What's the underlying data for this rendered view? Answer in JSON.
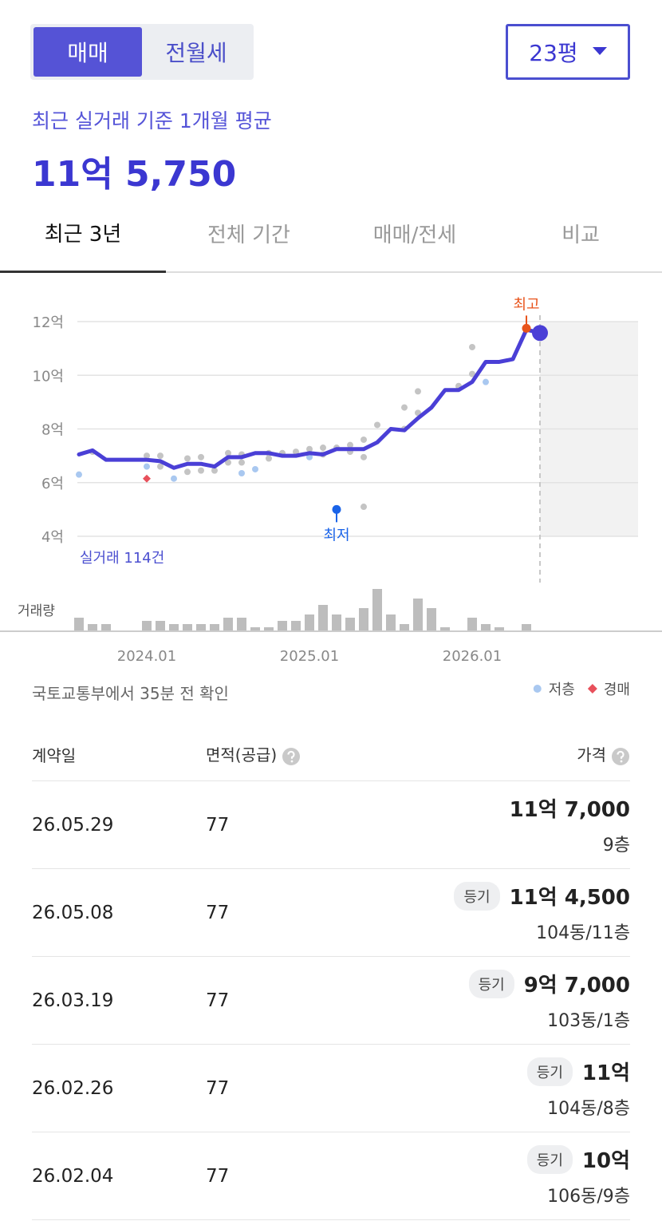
{
  "deal_tabs": {
    "items": [
      "매매",
      "전월세"
    ],
    "active": 0
  },
  "size_select": "23평",
  "avg_label": "최근 실거래 기준 1개월 평균",
  "avg_price": "11억 5,750",
  "period_tabs": {
    "items": [
      "최근 3년",
      "전체 기간",
      "매매/전세",
      "비교"
    ],
    "active": 0
  },
  "chart_data": {
    "type": "line",
    "ylim": [
      2.9,
      13
    ],
    "yticks": [
      {
        "value": 12,
        "label": "12억"
      },
      {
        "value": 10,
        "label": "10억"
      },
      {
        "value": 8,
        "label": "8억"
      },
      {
        "value": 6,
        "label": "6억"
      },
      {
        "value": 4,
        "label": "4억"
      }
    ],
    "xlim": [
      "2023.08",
      "2027.01"
    ],
    "xticks": [
      "2024.01",
      "2025.01",
      "2026.01"
    ],
    "grid": true,
    "count_label": "실거래 114건",
    "series": [
      {
        "type": "line",
        "color": "#4a3fd6",
        "x": [
          "2023.08",
          "2023.09",
          "2023.10",
          "2023.11",
          "2023.12",
          "2024.01",
          "2024.02",
          "2024.03",
          "2024.04",
          "2024.05",
          "2024.06",
          "2024.07",
          "2024.08",
          "2024.09",
          "2024.10",
          "2024.11",
          "2024.12",
          "2025.01",
          "2025.02",
          "2025.03",
          "2025.04",
          "2025.05",
          "2025.06",
          "2025.07",
          "2025.08",
          "2025.09",
          "2025.10",
          "2025.11",
          "2025.12",
          "2026.01",
          "2026.02",
          "2026.03",
          "2026.04",
          "2026.05",
          "2026.06"
        ],
        "values": [
          7.05,
          7.2,
          6.85,
          6.85,
          6.85,
          6.85,
          6.8,
          6.55,
          6.7,
          6.7,
          6.6,
          6.95,
          6.95,
          7.1,
          7.1,
          7.0,
          7.0,
          7.1,
          7.05,
          7.25,
          7.25,
          7.25,
          7.5,
          8.0,
          7.95,
          8.4,
          8.8,
          9.45,
          9.45,
          9.75,
          10.5,
          10.5,
          10.6,
          11.7,
          11.5775
        ]
      },
      {
        "type": "scatter",
        "color": "#c4c4c4",
        "x": [
          "2023.09",
          "2024.01",
          "2024.02",
          "2024.02",
          "2024.04",
          "2024.04",
          "2024.05",
          "2024.05",
          "2024.06",
          "2024.07",
          "2024.07",
          "2024.08",
          "2024.08",
          "2024.10",
          "2024.10",
          "2024.11",
          "2024.12",
          "2025.01",
          "2025.02",
          "2025.02",
          "2025.03",
          "2025.04",
          "2025.04",
          "2025.05",
          "2025.05",
          "2025.05",
          "2025.06",
          "2025.08",
          "2025.08",
          "2025.09",
          "2025.09",
          "2025.12",
          "2026.01",
          "2026.01"
        ],
        "values": [
          7.15,
          7.0,
          7.0,
          6.6,
          6.9,
          6.4,
          6.95,
          6.45,
          6.45,
          7.1,
          6.75,
          7.05,
          6.75,
          7.1,
          6.9,
          7.1,
          7.15,
          7.25,
          7.3,
          7.05,
          7.3,
          7.4,
          7.15,
          7.6,
          6.95,
          5.1,
          8.15,
          8.8,
          8.0,
          9.4,
          8.6,
          9.6,
          11.05,
          10.05
        ]
      },
      {
        "type": "scatter",
        "name": "저층",
        "color": "#a9c8f0",
        "x": [
          "2023.08",
          "2024.01",
          "2024.03",
          "2024.08",
          "2024.09",
          "2025.01",
          "2026.02"
        ],
        "values": [
          6.3,
          6.6,
          6.15,
          6.35,
          6.5,
          6.95,
          9.75
        ]
      },
      {
        "type": "diamond",
        "name": "경매",
        "color": "#e8505b",
        "x": [
          "2024.01"
        ],
        "values": [
          6.15
        ]
      }
    ],
    "annotations": [
      {
        "label": "최고",
        "x": "2026.05",
        "value": 11.75,
        "color": "#e8541c",
        "dir": "up"
      },
      {
        "label": "최저",
        "x": "2025.03",
        "value": 5.0,
        "color": "#1a63e8",
        "dir": "down"
      }
    ],
    "volume": {
      "label": "거래량",
      "color": "#bdbdbd",
      "values": [
        4,
        2,
        2,
        0,
        0,
        3,
        3,
        2,
        2,
        2,
        2,
        4,
        4,
        1,
        1,
        3,
        3,
        5,
        8,
        5,
        4,
        7,
        13,
        5,
        2,
        10,
        7,
        1,
        0,
        4,
        2,
        1,
        0,
        2,
        0
      ]
    }
  },
  "source": "국토교통부에서 35분 전 확인",
  "table": {
    "headers": [
      "계약일",
      "면적(공급)",
      "가격"
    ],
    "rows": [
      {
        "date": "26.05.29",
        "area": 77,
        "price": "11억 7,000",
        "floor": "9층"
      },
      {
        "date": "26.05.08",
        "area": 77,
        "badge": "등기",
        "price": "11억 4,500",
        "floor": "104동/11층"
      },
      {
        "date": "26.03.19",
        "area": 77,
        "badge": "등기",
        "price": "9억 7,000",
        "floor": "103동/1층"
      },
      {
        "date": "26.02.26",
        "area": 77,
        "badge": "등기",
        "price": "11억",
        "floor": "104동/8층"
      },
      {
        "date": "26.02.04",
        "area": 77,
        "badge": "등기",
        "price": "10억",
        "floor": "106동/9층"
      }
    ]
  }
}
